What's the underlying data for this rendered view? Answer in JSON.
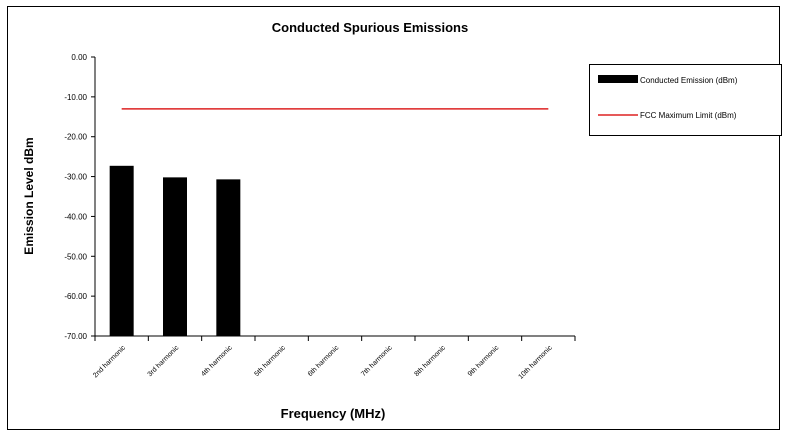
{
  "chart_data": {
    "type": "bar",
    "title": "Conducted Spurious Emissions",
    "xlabel": "Frequency (MHz)",
    "ylabel": "Emission Level dBm",
    "categories": [
      "2nd harmonic",
      "3rd harmonic",
      "4th harmonic",
      "5th harmonic",
      "6th harmonic",
      "7th harmonic",
      "8th harmonic",
      "9th harmonic",
      "10th harmonic"
    ],
    "yticks": [
      "0.00",
      "-10.00",
      "-20.00",
      "-30.00",
      "-40.00",
      "-50.00",
      "-60.00",
      "-70.00"
    ],
    "ylim": [
      -70,
      0
    ],
    "series": [
      {
        "name": "Conducted Emission (dBm)",
        "kind": "bar",
        "color": "#000000",
        "values": [
          -27.3,
          -30.2,
          -30.7,
          null,
          null,
          null,
          null,
          null,
          null
        ]
      },
      {
        "name": "FCC Maximum Limit (dBm)",
        "kind": "line",
        "color": "#dd2222",
        "values": [
          -13,
          -13,
          -13,
          -13,
          -13,
          -13,
          -13,
          -13,
          -13
        ]
      }
    ],
    "grid": false,
    "legend_position": "right"
  }
}
